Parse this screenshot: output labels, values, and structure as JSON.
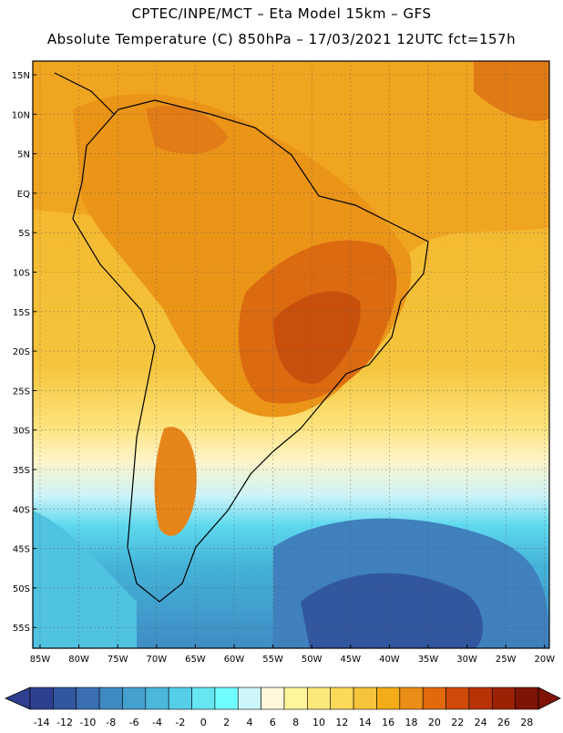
{
  "header": {
    "line1": "CPTEC/INPE/MCT –   Eta Model 15km – GFS",
    "line2": "Absolute Temperature (C) 850hPa – 17/03/2021 12UTC fct=157h"
  },
  "map": {
    "lat_labels": [
      "15N",
      "10N",
      "5N",
      "EQ",
      "5S",
      "10S",
      "15S",
      "20S",
      "25S",
      "30S",
      "35S",
      "40S",
      "45S",
      "50S",
      "55S"
    ],
    "lon_labels": [
      "85W",
      "80W",
      "75W",
      "70W",
      "65W",
      "60W",
      "55W",
      "50W",
      "45W",
      "40W",
      "35W",
      "30W",
      "25W",
      "20W"
    ]
  },
  "legend": {
    "ticks": [
      "-14",
      "-12",
      "-10",
      "-8",
      "-6",
      "-4",
      "-2",
      "0",
      "2",
      "4",
      "6",
      "8",
      "10",
      "12",
      "14",
      "16",
      "18",
      "20",
      "22",
      "24",
      "26",
      "28"
    ],
    "colors": [
      "#2e3f8f",
      "#32579f",
      "#3a70b3",
      "#3f89c2",
      "#44a1cf",
      "#4bb7dc",
      "#55cfe8",
      "#66e6f3",
      "#6ffcff",
      "#cdf6fb",
      "#fff8dc",
      "#fff59a",
      "#fde87a",
      "#fad858",
      "#f6c33a",
      "#f3ab18",
      "#ea8e18",
      "#e06a0c",
      "#cf4a08",
      "#b83306",
      "#9c2205",
      "#7d1405"
    ]
  }
}
